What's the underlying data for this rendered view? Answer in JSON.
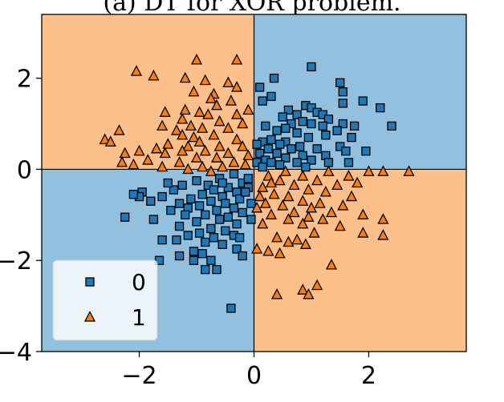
{
  "chart_data": {
    "type": "scatter",
    "title": "(a) DT for XOR problem.",
    "xlabel": "",
    "ylabel": "",
    "xlim": [
      -3.7,
      3.7
    ],
    "ylim": [
      -4.0,
      3.4
    ],
    "x_ticks": [
      "−2",
      "0",
      "2"
    ],
    "y_ticks": [
      "2",
      "0",
      "−2",
      "−4"
    ],
    "grid": false,
    "legend_position": "lower-left",
    "decision_regions": {
      "split_x": 0,
      "split_y": 0,
      "top_left_class": "1",
      "top_right_class": "0",
      "bottom_left_class": "0",
      "bottom_right_class": "1",
      "class_colors": {
        "0": "#92c0df",
        "1": "#fdc08a"
      }
    },
    "series": [
      {
        "name": "0",
        "marker": "square",
        "color": "#1f77b4",
        "points": [
          [
            1.0,
            2.25
          ],
          [
            0.35,
            2.0
          ],
          [
            1.5,
            1.9
          ],
          [
            1.55,
            1.7
          ],
          [
            0.1,
            1.8
          ],
          [
            0.3,
            1.6
          ],
          [
            1.55,
            1.45
          ],
          [
            1.9,
            1.5
          ],
          [
            2.2,
            1.35
          ],
          [
            0.15,
            1.5
          ],
          [
            0.9,
            1.4
          ],
          [
            1.0,
            1.35
          ],
          [
            1.1,
            1.25
          ],
          [
            0.6,
            1.3
          ],
          [
            0.75,
            1.2
          ],
          [
            0.5,
            1.15
          ],
          [
            1.2,
            1.2
          ],
          [
            0.85,
            1.05
          ],
          [
            1.3,
            1.1
          ],
          [
            0.65,
            1.0
          ],
          [
            1.0,
            1.0
          ],
          [
            1.55,
            1.0
          ],
          [
            1.2,
            0.95
          ],
          [
            0.2,
            0.95
          ],
          [
            0.55,
            0.9
          ],
          [
            1.75,
            0.95
          ],
          [
            2.4,
            0.95
          ],
          [
            1.45,
            0.85
          ],
          [
            0.4,
            0.85
          ],
          [
            0.75,
            0.8
          ],
          [
            1.25,
            0.75
          ],
          [
            0.95,
            0.7
          ],
          [
            1.7,
            0.7
          ],
          [
            0.3,
            0.65
          ],
          [
            0.55,
            0.6
          ],
          [
            0.15,
            0.6
          ],
          [
            0.45,
            0.55
          ],
          [
            0.8,
            0.5
          ],
          [
            1.5,
            0.5
          ],
          [
            0.05,
            0.55
          ],
          [
            0.25,
            0.45
          ],
          [
            1.1,
            0.45
          ],
          [
            0.65,
            0.45
          ],
          [
            1.6,
            0.4
          ],
          [
            1.95,
            0.4
          ],
          [
            0.1,
            0.35
          ],
          [
            0.4,
            0.35
          ],
          [
            0.85,
            0.3
          ],
          [
            1.25,
            0.3
          ],
          [
            0.55,
            0.25
          ],
          [
            0.2,
            0.2
          ],
          [
            0.3,
            0.15
          ],
          [
            1.0,
            0.2
          ],
          [
            1.3,
            0.15
          ],
          [
            0.75,
            0.15
          ],
          [
            0.05,
            0.15
          ],
          [
            0.45,
            0.1
          ],
          [
            1.65,
            0.15
          ],
          [
            0.9,
            0.05
          ],
          [
            0.15,
            0.05
          ],
          [
            -0.35,
            -0.1
          ],
          [
            -0.6,
            -0.2
          ],
          [
            -1.0,
            -0.25
          ],
          [
            -0.2,
            -0.3
          ],
          [
            -0.8,
            -0.35
          ],
          [
            -1.25,
            -0.35
          ],
          [
            -0.45,
            -0.4
          ],
          [
            -0.1,
            -0.4
          ],
          [
            -0.7,
            -0.45
          ],
          [
            -1.4,
            -0.45
          ],
          [
            -0.3,
            -0.5
          ],
          [
            -0.9,
            -0.55
          ],
          [
            -1.95,
            -0.5
          ],
          [
            -0.55,
            -0.6
          ],
          [
            -1.6,
            -0.6
          ],
          [
            -1.1,
            -0.65
          ],
          [
            -0.25,
            -0.65
          ],
          [
            -2.0,
            -0.6
          ],
          [
            -0.75,
            -0.7
          ],
          [
            -1.3,
            -0.75
          ],
          [
            -0.5,
            -0.75
          ],
          [
            -0.05,
            -0.75
          ],
          [
            -1.8,
            -0.7
          ],
          [
            -2.1,
            -0.55
          ],
          [
            -0.95,
            -0.8
          ],
          [
            -0.35,
            -0.85
          ],
          [
            -1.15,
            -0.85
          ],
          [
            -0.65,
            -0.9
          ],
          [
            -1.45,
            -0.9
          ],
          [
            -0.2,
            -0.95
          ],
          [
            -0.85,
            -1.0
          ],
          [
            -1.2,
            -1.0
          ],
          [
            -0.45,
            -1.05
          ],
          [
            -1.75,
            -1.1
          ],
          [
            -0.6,
            -1.1
          ],
          [
            -2.25,
            -1.05
          ],
          [
            -1.0,
            -1.15
          ],
          [
            -0.3,
            -1.2
          ],
          [
            -1.3,
            -1.25
          ],
          [
            -0.75,
            -1.3
          ],
          [
            -0.5,
            -1.35
          ],
          [
            -0.95,
            -1.4
          ],
          [
            -1.15,
            -1.45
          ],
          [
            -0.35,
            -1.45
          ],
          [
            -0.7,
            -1.5
          ],
          [
            -1.35,
            -1.55
          ],
          [
            -1.6,
            -1.55
          ],
          [
            -0.85,
            -1.6
          ],
          [
            -0.55,
            -1.65
          ],
          [
            -0.3,
            -1.75
          ],
          [
            -1.05,
            -1.8
          ],
          [
            -0.2,
            -1.9
          ],
          [
            -1.3,
            -1.9
          ],
          [
            -0.75,
            -2.0
          ],
          [
            -1.05,
            -2.0
          ],
          [
            -1.65,
            -2.0
          ],
          [
            -0.85,
            -2.2
          ],
          [
            -0.65,
            -2.2
          ],
          [
            -0.4,
            -3.05
          ],
          [
            -0.15,
            -0.5
          ],
          [
            -0.1,
            -0.2
          ],
          [
            -0.55,
            -0.3
          ],
          [
            -1.5,
            -0.3
          ],
          [
            -0.05,
            -1.1
          ],
          [
            -0.25,
            -1.5
          ],
          [
            -0.9,
            -1.85
          ]
        ]
      },
      {
        "name": "1",
        "marker": "triangle",
        "color": "#ff7f0e",
        "points": [
          [
            -1.0,
            2.4
          ],
          [
            -0.3,
            2.4
          ],
          [
            -2.05,
            2.15
          ],
          [
            -1.75,
            2.05
          ],
          [
            -1.2,
            2.0
          ],
          [
            -0.85,
            1.95
          ],
          [
            -0.45,
            1.9
          ],
          [
            -0.3,
            1.8
          ],
          [
            -1.05,
            1.7
          ],
          [
            -0.7,
            1.65
          ],
          [
            -0.75,
            1.55
          ],
          [
            -0.4,
            1.5
          ],
          [
            -0.65,
            1.4
          ],
          [
            -1.2,
            1.3
          ],
          [
            -0.95,
            1.25
          ],
          [
            -0.1,
            1.3
          ],
          [
            -0.3,
            1.2
          ],
          [
            -1.55,
            1.25
          ],
          [
            -0.8,
            1.2
          ],
          [
            -1.25,
            1.1
          ],
          [
            -0.6,
            1.05
          ],
          [
            -0.2,
            1.0
          ],
          [
            -1.1,
            0.95
          ],
          [
            -1.6,
            0.95
          ],
          [
            -0.9,
            0.9
          ],
          [
            -1.35,
            0.85
          ],
          [
            -0.45,
            0.9
          ],
          [
            -1.25,
            0.75
          ],
          [
            -0.7,
            0.75
          ],
          [
            -1.05,
            0.7
          ],
          [
            -2.35,
            0.85
          ],
          [
            -2.6,
            0.65
          ],
          [
            -2.5,
            0.6
          ],
          [
            -0.3,
            0.65
          ],
          [
            -0.95,
            0.6
          ],
          [
            -1.5,
            0.55
          ],
          [
            -1.15,
            0.5
          ],
          [
            -0.6,
            0.5
          ],
          [
            -0.2,
            0.5
          ],
          [
            -1.7,
            0.45
          ],
          [
            -2.0,
            0.4
          ],
          [
            -1.25,
            0.4
          ],
          [
            -0.85,
            0.4
          ],
          [
            -0.45,
            0.35
          ],
          [
            -1.55,
            0.35
          ],
          [
            -2.25,
            0.35
          ],
          [
            -0.1,
            0.3
          ],
          [
            -1.0,
            0.25
          ],
          [
            -0.65,
            0.25
          ],
          [
            -1.85,
            0.2
          ],
          [
            -2.3,
            0.15
          ],
          [
            -1.3,
            0.15
          ],
          [
            -0.35,
            0.15
          ],
          [
            -2.1,
            0.1
          ],
          [
            -1.6,
            0.05
          ],
          [
            -0.9,
            0.05
          ],
          [
            -0.55,
            0.05
          ],
          [
            -0.15,
            0.1
          ],
          [
            -1.15,
            0.0
          ],
          [
            -0.75,
            -0.05
          ],
          [
            0.55,
            -0.05
          ],
          [
            1.3,
            -0.05
          ],
          [
            2.0,
            -0.05
          ],
          [
            2.25,
            -0.05
          ],
          [
            2.7,
            -0.05
          ],
          [
            0.25,
            -0.15
          ],
          [
            0.85,
            -0.15
          ],
          [
            1.65,
            -0.15
          ],
          [
            0.45,
            -0.25
          ],
          [
            1.1,
            -0.25
          ],
          [
            0.7,
            -0.35
          ],
          [
            1.45,
            -0.35
          ],
          [
            0.15,
            -0.4
          ],
          [
            0.95,
            -0.45
          ],
          [
            1.25,
            -0.5
          ],
          [
            0.35,
            -0.55
          ],
          [
            0.6,
            -0.6
          ],
          [
            1.7,
            -0.6
          ],
          [
            0.85,
            -0.7
          ],
          [
            0.2,
            -0.75
          ],
          [
            1.15,
            -0.75
          ],
          [
            0.5,
            -0.8
          ],
          [
            1.55,
            -0.8
          ],
          [
            0.05,
            -0.85
          ],
          [
            0.7,
            -0.95
          ],
          [
            1.35,
            -0.95
          ],
          [
            0.3,
            -1.0
          ],
          [
            0.95,
            -1.05
          ],
          [
            1.9,
            -1.0
          ],
          [
            0.6,
            -1.1
          ],
          [
            1.2,
            -1.1
          ],
          [
            2.25,
            -1.1
          ],
          [
            0.15,
            -1.2
          ],
          [
            0.85,
            -1.2
          ],
          [
            1.5,
            -1.25
          ],
          [
            1.05,
            -1.4
          ],
          [
            0.4,
            -1.5
          ],
          [
            0.75,
            -1.55
          ],
          [
            1.9,
            -1.4
          ],
          [
            0.05,
            -1.75
          ],
          [
            0.25,
            -1.8
          ],
          [
            0.6,
            -1.6
          ],
          [
            0.9,
            -1.65
          ],
          [
            2.25,
            -1.45
          ],
          [
            0.45,
            -1.85
          ],
          [
            1.35,
            -2.1
          ],
          [
            1.1,
            -2.55
          ],
          [
            0.85,
            -2.65
          ],
          [
            0.95,
            -2.75
          ],
          [
            0.4,
            -2.75
          ],
          [
            0.3,
            -0.3
          ],
          [
            0.1,
            -0.6
          ],
          [
            1.8,
            -0.3
          ],
          [
            1.0,
            -0.85
          ]
        ]
      }
    ]
  }
}
